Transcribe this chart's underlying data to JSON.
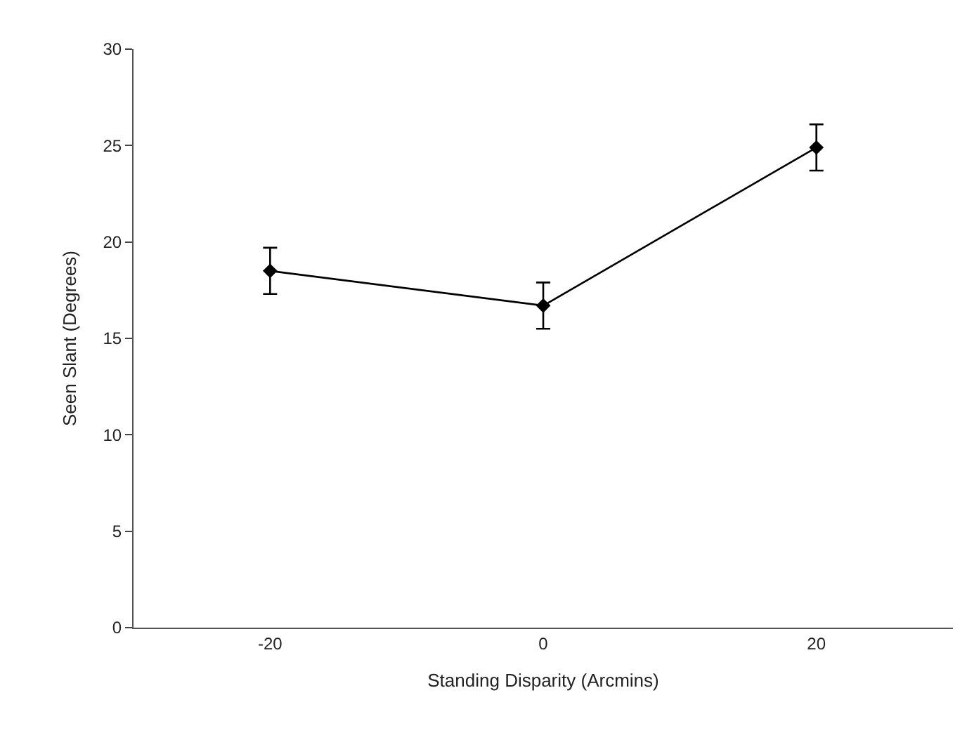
{
  "chart_data": {
    "type": "line",
    "xlabel": "Standing Disparity (Arcmins)",
    "ylabel": "Seen Slant (Degrees)",
    "x": [
      -20,
      0,
      20
    ],
    "series": [
      {
        "color": "#000000",
        "values": [
          18.5,
          16.7,
          24.9
        ],
        "errors": [
          1.2,
          1.2,
          1.2
        ]
      }
    ],
    "xlim": [
      -30,
      30
    ],
    "xticks": [
      -20,
      0,
      20
    ],
    "ylim": [
      0,
      30
    ],
    "yticks": [
      0,
      5,
      10,
      15,
      20,
      25,
      30
    ],
    "marker": "diamond",
    "line_style": "solid",
    "legend": false
  }
}
